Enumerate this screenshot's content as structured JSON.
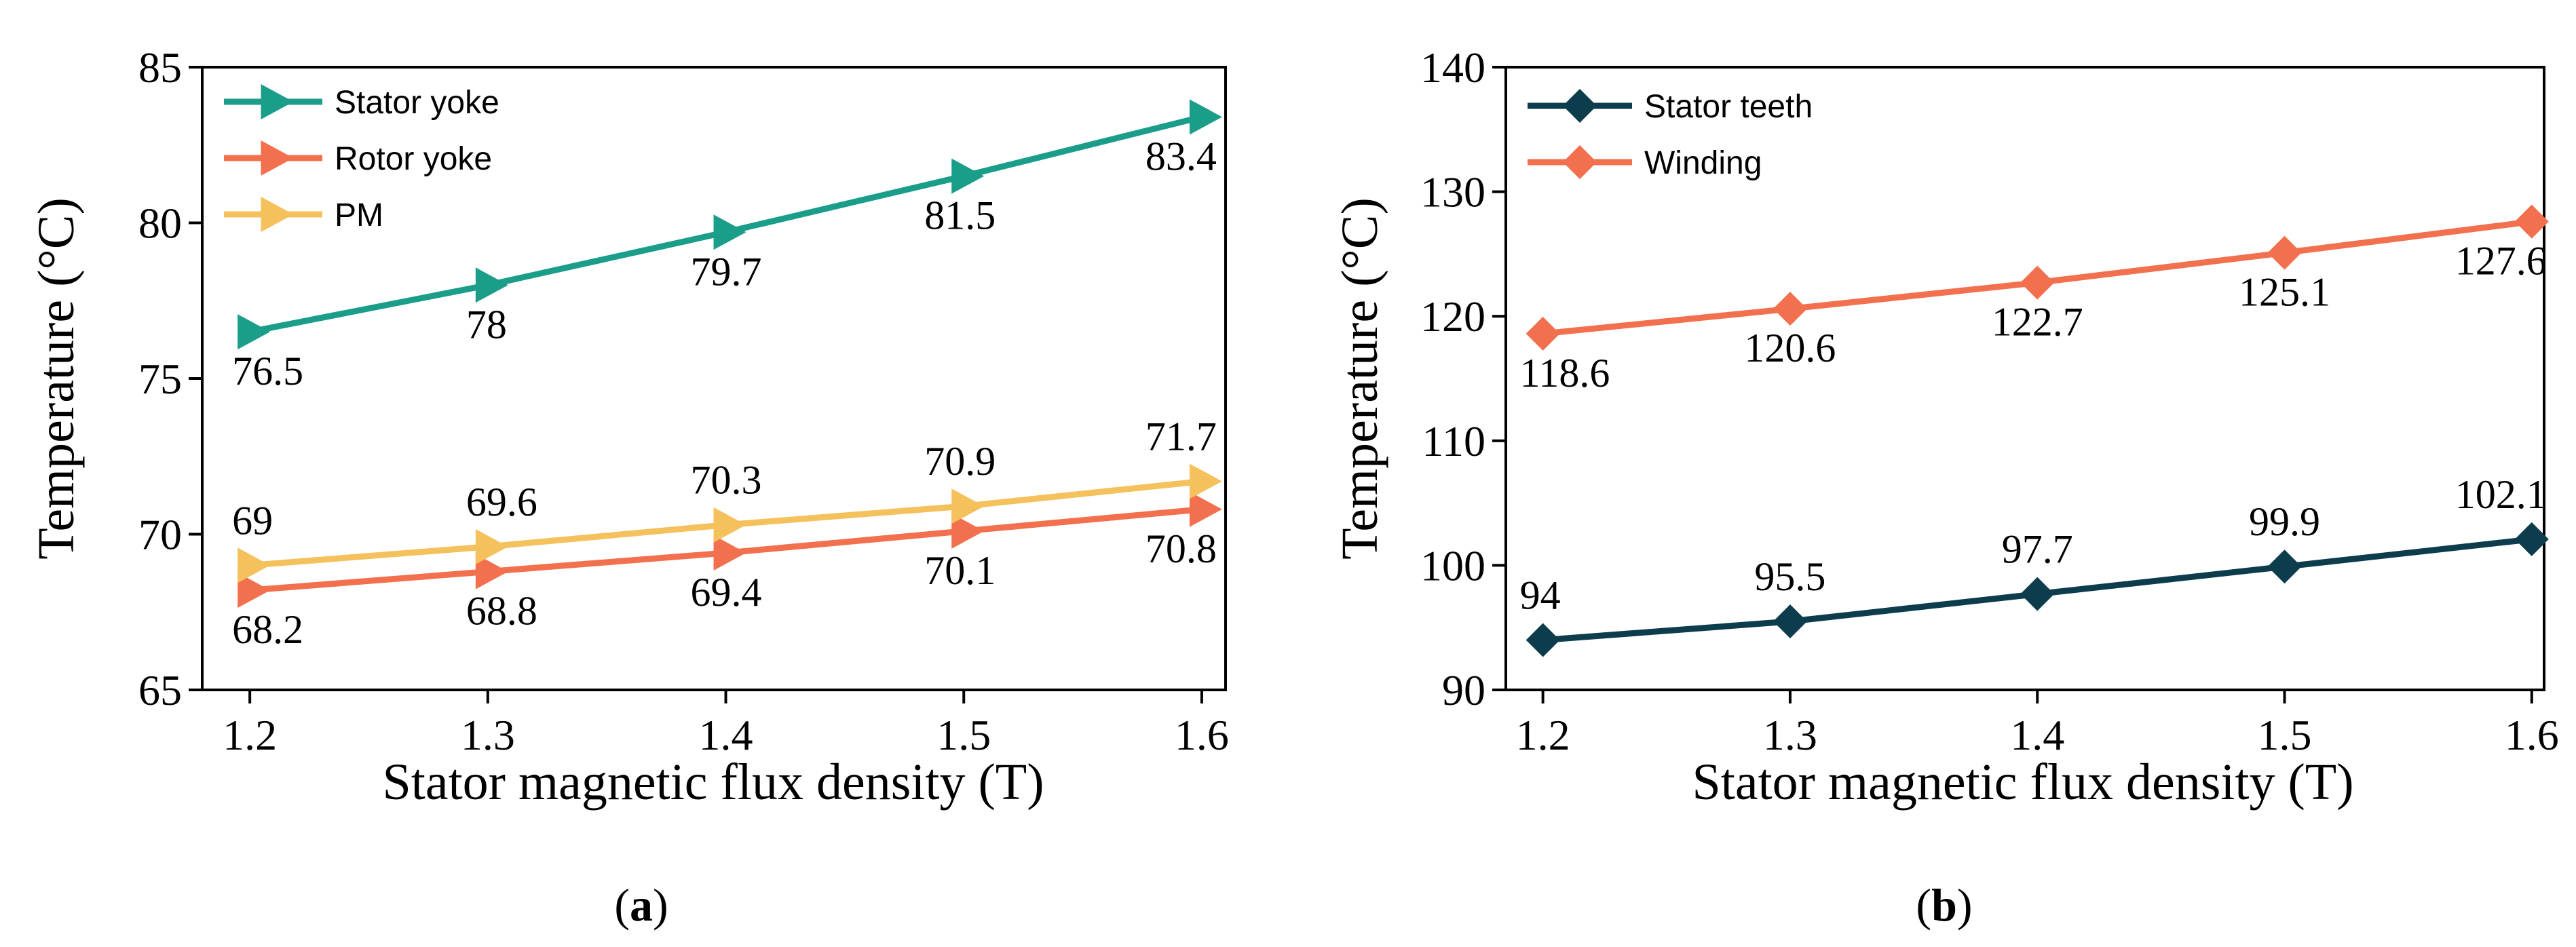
{
  "chart_data": [
    {
      "type": "line",
      "panel": "a",
      "xlabel": "Stator  magnetic flux density (T)",
      "ylabel": "Temperature (°C)",
      "xlim": [
        1.18,
        1.61
      ],
      "ylim": [
        65,
        85
      ],
      "xticks": [
        1.2,
        1.3,
        1.4,
        1.5,
        1.6
      ],
      "xtick_labels": [
        "1.2",
        "1.3",
        "1.4",
        "1.5",
        "1.6"
      ],
      "yticks": [
        65,
        70,
        75,
        80,
        85
      ],
      "ytick_labels": [
        "65",
        "70",
        "75",
        "80",
        "85"
      ],
      "legend_position": "top-left",
      "series": [
        {
          "name": "Stator yoke",
          "color": "#1a9e8a",
          "marker": "triangle-right",
          "x": [
            1.2,
            1.3,
            1.4,
            1.5,
            1.6
          ],
          "values": [
            76.5,
            78,
            79.7,
            81.5,
            83.4
          ],
          "labels": [
            "76.5",
            "78",
            "79.7",
            "81.5",
            "83.4"
          ],
          "label_side": "below"
        },
        {
          "name": "Rotor yoke",
          "color": "#f2704e",
          "marker": "triangle-right",
          "x": [
            1.2,
            1.3,
            1.4,
            1.5,
            1.6
          ],
          "values": [
            68.2,
            68.8,
            69.4,
            70.1,
            70.8
          ],
          "labels": [
            "68.2",
            "68.8",
            "69.4",
            "70.1",
            "70.8"
          ],
          "label_side": "below"
        },
        {
          "name": "PM",
          "color": "#f5c15c",
          "marker": "triangle-right",
          "x": [
            1.2,
            1.3,
            1.4,
            1.5,
            1.6
          ],
          "values": [
            69,
            69.6,
            70.3,
            70.9,
            71.7
          ],
          "labels": [
            "69",
            "69.6",
            "70.3",
            "70.9",
            "71.7"
          ],
          "label_side": "above"
        }
      ],
      "caption_open": "(",
      "caption_letter": "a",
      "caption_close": ")"
    },
    {
      "type": "line",
      "panel": "b",
      "xlabel": "Stator  magnetic flux density (T)",
      "ylabel": "Temperature (°C)",
      "xlim": [
        1.185,
        1.605
      ],
      "ylim": [
        90,
        140
      ],
      "xticks": [
        1.2,
        1.3,
        1.4,
        1.5,
        1.6
      ],
      "xtick_labels": [
        "1.2",
        "1.3",
        "1.4",
        "1.5",
        "1.6"
      ],
      "yticks": [
        90,
        100,
        110,
        120,
        130,
        140
      ],
      "ytick_labels": [
        "90",
        "100",
        "110",
        "120",
        "130",
        "140"
      ],
      "legend_position": "top-left",
      "series": [
        {
          "name": "Stator teeth",
          "color": "#0d3d4d",
          "marker": "diamond",
          "x": [
            1.2,
            1.3,
            1.4,
            1.5,
            1.6
          ],
          "values": [
            94,
            95.5,
            97.7,
            99.9,
            102.1
          ],
          "labels": [
            "94",
            "95.5",
            "97.7",
            "99.9",
            "102.1"
          ],
          "label_side": "above"
        },
        {
          "name": "Winding",
          "color": "#f2704e",
          "marker": "diamond",
          "x": [
            1.2,
            1.3,
            1.4,
            1.5,
            1.6
          ],
          "values": [
            118.6,
            120.6,
            122.7,
            125.1,
            127.6
          ],
          "labels": [
            "118.6",
            "120.6",
            "122.7",
            "125.1",
            "127.6"
          ],
          "label_side": "below"
        }
      ],
      "caption_open": "(",
      "caption_letter": "b",
      "caption_close": ")"
    }
  ]
}
